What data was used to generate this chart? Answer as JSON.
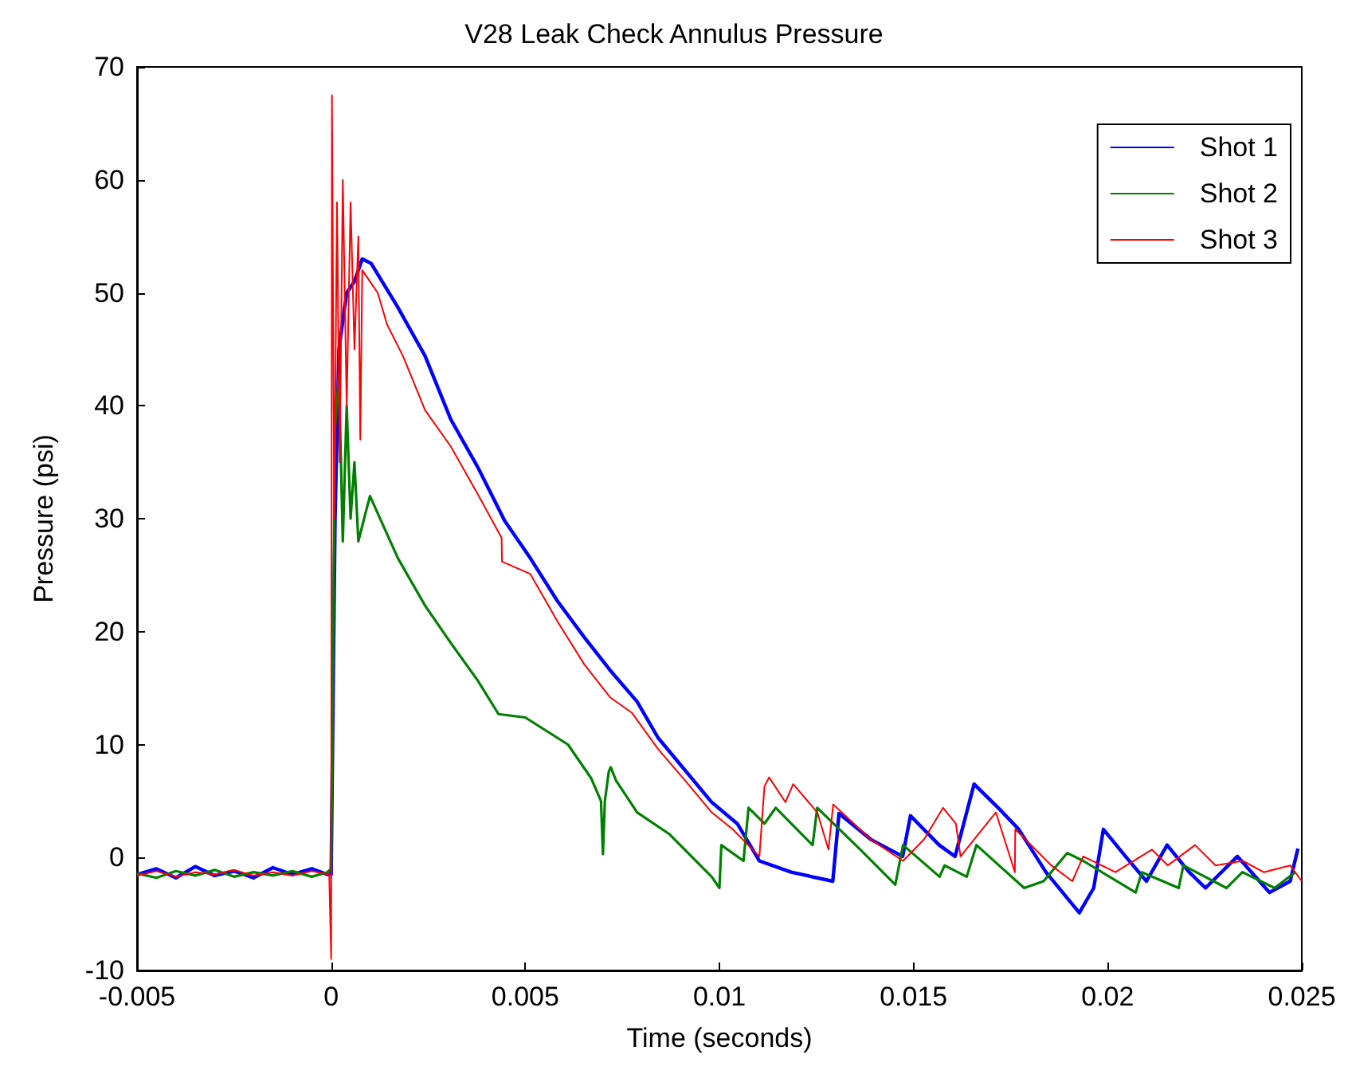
{
  "chart_data": {
    "type": "line",
    "title": "V28 Leak Check Annulus Pressure",
    "xlabel": "Time (seconds)",
    "ylabel": "Pressure (psi)",
    "xlim": [
      -0.005,
      0.025
    ],
    "xticks": [
      -0.005,
      0,
      0.005,
      0.01,
      0.015,
      0.02,
      0.025
    ],
    "ylim": [
      -10,
      70
    ],
    "yticks": [
      -10,
      0,
      10,
      20,
      30,
      40,
      50,
      60,
      70
    ],
    "grid": false,
    "legend": "top right",
    "marker": "none",
    "line_style": "solid",
    "series": [
      {
        "name": "Shot 1",
        "color": "#0000ff",
        "x": [
          -0.005,
          -0.0045,
          -0.004,
          -0.0035,
          -0.003,
          -0.0025,
          -0.002,
          -0.0015,
          -0.001,
          -0.0005,
          -0.0001,
          0,
          0.0001,
          0.0002,
          0.0004,
          0.0006,
          0.0008,
          0.00103,
          0.00172,
          0.00242,
          0.00308,
          0.00377,
          0.00447,
          0.00513,
          0.00583,
          0.00652,
          0.00718,
          0.00788,
          0.00842,
          0.0098,
          0.01046,
          0.01103,
          0.01185,
          0.01292,
          0.01308,
          0.0139,
          0.01472,
          0.01492,
          0.01566,
          0.01607,
          0.01656,
          0.01718,
          0.01771,
          0.01841,
          0.01927,
          0.01964,
          0.01989,
          0.02046,
          0.021,
          0.02153,
          0.0221,
          0.02252,
          0.02334,
          0.02417,
          0.0247,
          0.0249
        ],
        "values": [
          -1.5,
          -1,
          -1.8,
          -0.8,
          -1.6,
          -1.2,
          -1.8,
          -0.9,
          -1.5,
          -1,
          -1.5,
          -1.5,
          30,
          45,
          50,
          51,
          53,
          52.6,
          48.7,
          44.4,
          38.8,
          34.6,
          29.8,
          26.5,
          22.7,
          19.5,
          16.6,
          13.8,
          10.6,
          4.9,
          3,
          -0.3,
          -1.3,
          -2.1,
          3.9,
          1.6,
          0.1,
          3.7,
          1.1,
          0.1,
          6.5,
          4.4,
          2.5,
          -1.3,
          -4.9,
          -2.7,
          2.5,
          0.1,
          -2.1,
          1.1,
          -1.3,
          -2.7,
          0.1,
          -3.1,
          -2.1,
          0.8
        ]
      },
      {
        "name": "Shot 2",
        "color": "#008000",
        "x": [
          -0.005,
          -0.0045,
          -0.004,
          -0.0035,
          -0.003,
          -0.0025,
          -0.002,
          -0.0015,
          -0.001,
          -0.0005,
          -0.0001,
          0,
          5e-05,
          0.0001,
          0.0002,
          0.0003,
          0.0004,
          0.0005,
          0.0006,
          0.0007,
          0.0009,
          0.001,
          0.00172,
          0.00242,
          0.00308,
          0.00377,
          0.00431,
          0.005,
          0.0061,
          0.0067,
          0.00695,
          0.007,
          0.00705,
          0.00715,
          0.0072,
          0.00734,
          0.00788,
          0.0087,
          0.0098,
          0.01,
          0.01005,
          0.01062,
          0.01075,
          0.01116,
          0.01145,
          0.0124,
          0.01252,
          0.01363,
          0.01453,
          0.01473,
          0.01567,
          0.0158,
          0.01637,
          0.01662,
          0.01785,
          0.01835,
          0.01896,
          0.01937,
          0.02072,
          0.02088,
          0.02183,
          0.02195,
          0.02306,
          0.02347,
          0.0243,
          0.02483
        ],
        "values": [
          -1.4,
          -1.8,
          -1.2,
          -1.6,
          -1.1,
          -1.7,
          -1.3,
          -1.6,
          -1.2,
          -1.7,
          -1.3,
          -1,
          18,
          38,
          42.7,
          28,
          40,
          30,
          35,
          28,
          30.7,
          32,
          26.5,
          22.3,
          19,
          15.7,
          12.7,
          12.4,
          10,
          7,
          5,
          0.3,
          5,
          7.6,
          8,
          6.8,
          4,
          2.1,
          -1.7,
          -2.7,
          1.1,
          -0.3,
          4.4,
          3,
          4.4,
          1.1,
          4.4,
          0.7,
          -2.4,
          1.1,
          -1.7,
          -0.7,
          -1.7,
          1.1,
          -2.7,
          -2.1,
          0.4,
          -0.3,
          -3.1,
          -1.3,
          -2.7,
          -0.7,
          -2.7,
          -1.3,
          -2.7,
          -1.3
        ]
      },
      {
        "name": "Shot 3",
        "color": "#ff0000",
        "x": [
          -0.005,
          -0.0045,
          -0.004,
          -0.0035,
          -0.003,
          -0.0025,
          -0.002,
          -0.0015,
          -0.001,
          -0.0005,
          -5e-05,
          0,
          2e-05,
          8e-05,
          0.00015,
          0.00022,
          0.0003,
          0.0004,
          0.0005,
          0.0006,
          0.0007,
          0.00075,
          0.0008,
          0.001,
          0.0012,
          0.00144,
          0.00185,
          0.00242,
          0.00308,
          0.00377,
          0.00439,
          0.0044,
          0.00513,
          0.00583,
          0.00652,
          0.00718,
          0.00775,
          0.00842,
          0.00912,
          0.0098,
          0.01034,
          0.01103,
          0.01116,
          0.01128,
          0.0117,
          0.0119,
          0.01252,
          0.01281,
          0.01293,
          0.0139,
          0.01473,
          0.01527,
          0.01576,
          0.01609,
          0.01621,
          0.01712,
          0.01761,
          0.01762,
          0.01855,
          0.01909,
          0.01937,
          0.0202,
          0.02114,
          0.02155,
          0.02225,
          0.02278,
          0.02348,
          0.02402,
          0.0247,
          0.025
        ],
        "values": [
          -1.6,
          -1.2,
          -1.7,
          -1.3,
          -1.5,
          -1.1,
          -1.6,
          -1.3,
          -1.6,
          -1.2,
          -1.5,
          -9,
          67.5,
          30,
          58,
          35,
          60,
          40,
          58,
          45,
          55,
          37,
          52,
          51,
          50,
          47.2,
          44.4,
          39.6,
          36.4,
          32.2,
          28.3,
          26.2,
          25.1,
          20.9,
          17.1,
          14.2,
          12.8,
          9.6,
          6.8,
          4,
          2.5,
          0.1,
          6.3,
          7.1,
          4.9,
          6.5,
          4,
          0.7,
          4.7,
          1.6,
          -0.3,
          1.6,
          4.4,
          3,
          0.1,
          4,
          -1.3,
          2.5,
          -0.7,
          -2.1,
          0.1,
          -1.3,
          0.7,
          -0.7,
          1.1,
          -0.7,
          -0.3,
          -1.3,
          -0.7,
          -2.1
        ]
      }
    ]
  }
}
